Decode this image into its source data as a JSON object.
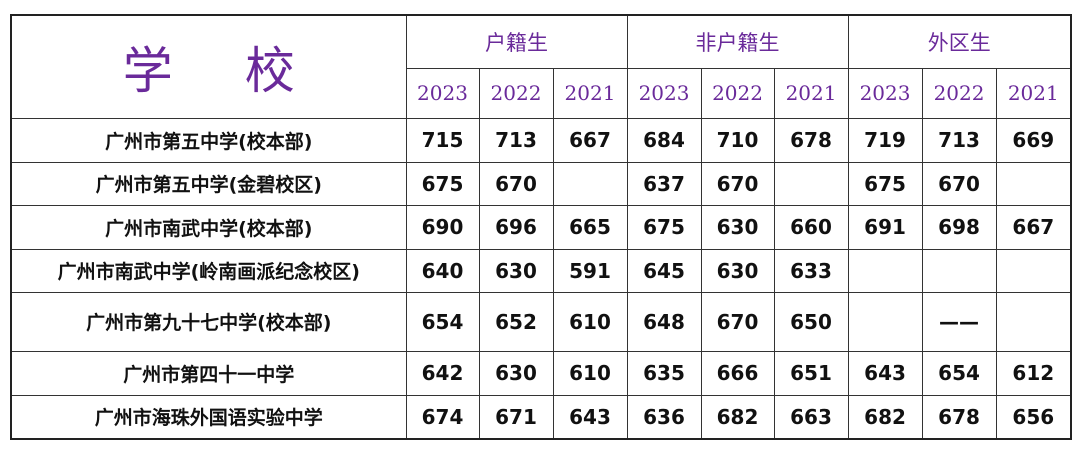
{
  "header": {
    "school_label": "学 校",
    "groups": [
      "户籍生",
      "非户籍生",
      "外区生"
    ],
    "years": [
      "2023",
      "2022",
      "2021"
    ]
  },
  "rows": [
    {
      "school": "广州市第五中学(校本部)",
      "scores": [
        "715",
        "713",
        "667",
        "684",
        "710",
        "678",
        "719",
        "713",
        "669"
      ]
    },
    {
      "school": "广州市第五中学(金碧校区)",
      "scores": [
        "675",
        "670",
        "",
        "637",
        "670",
        "",
        "675",
        "670",
        ""
      ]
    },
    {
      "school": "广州市南武中学(校本部)",
      "scores": [
        "690",
        "696",
        "665",
        "675",
        "630",
        "660",
        "691",
        "698",
        "667"
      ]
    },
    {
      "school": "广州市南武中学(岭南画派纪念校区)",
      "scores": [
        "640",
        "630",
        "591",
        "645",
        "630",
        "633",
        "",
        "",
        ""
      ]
    },
    {
      "school": "广州市第九十七中学(校本部)",
      "scores": [
        "654",
        "652",
        "610",
        "648",
        "670",
        "650",
        "",
        "——",
        ""
      ]
    },
    {
      "school": "广州市第四十一中学",
      "scores": [
        "642",
        "630",
        "610",
        "635",
        "666",
        "651",
        "643",
        "654",
        "612"
      ]
    },
    {
      "school": "广州市海珠外国语实验中学",
      "scores": [
        "674",
        "671",
        "643",
        "636",
        "682",
        "663",
        "682",
        "678",
        "656"
      ]
    }
  ]
}
